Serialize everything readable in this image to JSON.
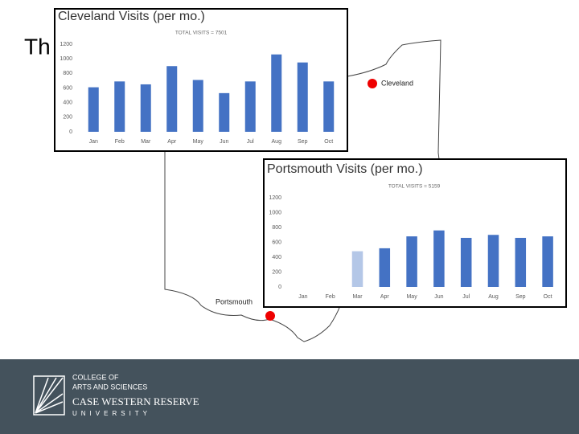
{
  "slide_title": "Th",
  "map_labels": {
    "cleveland": "Cleveland",
    "portsmouth": "Portsmouth"
  },
  "footer": {
    "line1": "COLLEGE OF",
    "line2": "ARTS AND SCIENCES",
    "line3": "CASE WESTERN RESERVE",
    "line4": "UNIVERSITY"
  },
  "chart_data": [
    {
      "type": "bar",
      "title": "Cleveland Visits (per mo.)",
      "subtitle": "TOTAL VISITS = 7501",
      "categories": [
        "Jan",
        "Feb",
        "Mar",
        "Apr",
        "May",
        "Jun",
        "Jul",
        "Aug",
        "Sep",
        "Oct"
      ],
      "values": [
        610,
        690,
        650,
        900,
        710,
        530,
        690,
        1060,
        950,
        690
      ],
      "colors": [
        "#4472c4",
        "#4472c4",
        "#4472c4",
        "#4472c4",
        "#4472c4",
        "#4472c4",
        "#4472c4",
        "#4472c4",
        "#4472c4",
        "#4472c4"
      ],
      "ylim": [
        0,
        1200
      ],
      "yticks": [
        0,
        200,
        400,
        600,
        800,
        1000,
        1200
      ],
      "grid": false
    },
    {
      "type": "bar",
      "title": "Portsmouth Visits (per mo.)",
      "subtitle": "TOTAL VISITS = 5159",
      "categories": [
        "Jan",
        "Feb",
        "Mar",
        "Apr",
        "May",
        "Jun",
        "Jul",
        "Aug",
        "Sep",
        "Oct"
      ],
      "values": [
        null,
        null,
        480,
        520,
        680,
        760,
        660,
        700,
        660,
        680
      ],
      "colors": [
        null,
        null,
        "#b4c7e7",
        "#4472c4",
        "#4472c4",
        "#4472c4",
        "#4472c4",
        "#4472c4",
        "#4472c4",
        "#4472c4"
      ],
      "ylim": [
        0,
        1200
      ],
      "yticks": [
        0,
        200,
        400,
        600,
        800,
        1000,
        1200
      ],
      "grid": false
    }
  ]
}
